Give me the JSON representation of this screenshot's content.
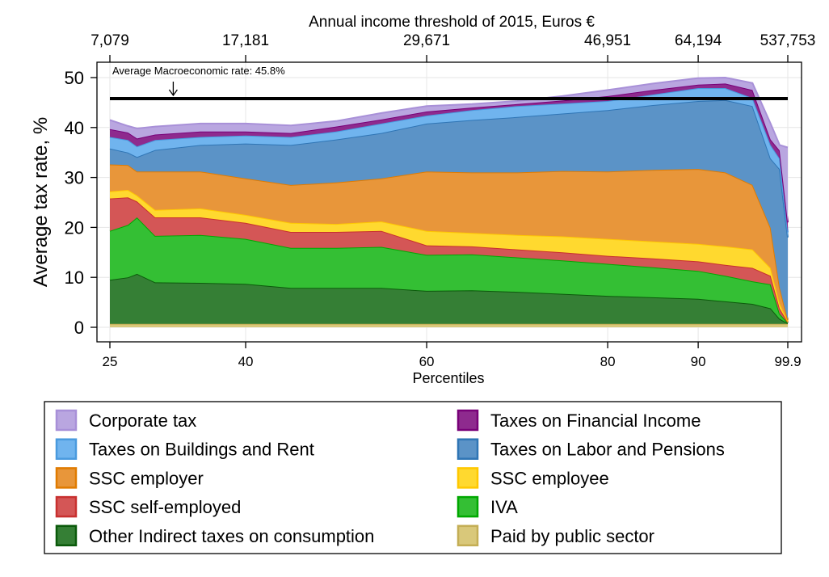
{
  "chart_data": {
    "type": "area",
    "stacked": true,
    "xlabel": "Percentiles",
    "ylabel": "Average tax rate, %",
    "x2label": "Annual income threshold of 2015, Euros €",
    "ylim": [
      0,
      50
    ],
    "xlim": [
      25,
      99.9
    ],
    "grid": true,
    "legend_position": "bottom",
    "x_ticks": [
      25,
      40,
      60,
      80,
      90,
      99.9
    ],
    "x_tick_labels": [
      "25",
      "40",
      "60",
      "80",
      "90",
      "99.9"
    ],
    "y_ticks": [
      0,
      10,
      20,
      30,
      40,
      50
    ],
    "y_tick_labels": [
      "0",
      "10",
      "20",
      "30",
      "40",
      "50"
    ],
    "x2_tick_labels": [
      "7,079",
      "17,181",
      "29,671",
      "46,951",
      "64,194",
      "537,753"
    ],
    "reference_line": {
      "value": 45.8,
      "label": "Average Macroeconomic rate: 45.8%",
      "arrow_x": 32
    },
    "x": [
      25,
      27,
      28,
      30,
      35,
      40,
      45,
      50,
      55,
      60,
      65,
      70,
      75,
      80,
      85,
      90,
      93,
      96,
      98,
      99,
      99.9
    ],
    "series": [
      {
        "name": "Paid by public sector",
        "color": "#d9c87a",
        "stroke": "#c4ae55",
        "values": [
          0.7,
          0.7,
          0.7,
          0.7,
          0.7,
          0.7,
          0.7,
          0.7,
          0.7,
          0.7,
          0.7,
          0.7,
          0.7,
          0.7,
          0.7,
          0.7,
          0.7,
          0.7,
          0.7,
          0.7,
          0.7
        ]
      },
      {
        "name": "Other Indirect taxes on consumption",
        "color": "#357f35",
        "stroke": "#0b5a0b",
        "values": [
          8.8,
          9.3,
          10,
          8.3,
          8.2,
          8,
          7.2,
          7.2,
          7.2,
          6.6,
          6.7,
          6.4,
          6,
          5.6,
          5.3,
          5,
          4.5,
          4,
          3.1,
          1,
          0.1
        ]
      },
      {
        "name": "IVA",
        "color": "#34bf34",
        "stroke": "#00a800",
        "values": [
          9.8,
          10.5,
          11.3,
          9.3,
          9.6,
          9,
          8,
          8,
          8.2,
          7.2,
          7.2,
          6.9,
          6.7,
          6.4,
          6,
          5.6,
          5.1,
          4.5,
          4.8,
          1,
          0.1
        ]
      },
      {
        "name": "SSC self-employed",
        "color": "#d45656",
        "stroke": "#c8302f",
        "values": [
          6.5,
          5.5,
          3.2,
          3.7,
          3.5,
          3.2,
          3.2,
          3.2,
          3.2,
          1.9,
          1.6,
          1.6,
          1.6,
          1.6,
          1.8,
          1.9,
          2.2,
          2.7,
          1.7,
          1.1,
          0.1
        ]
      },
      {
        "name": "SSC employee",
        "color": "#ffd92f",
        "stroke": "#ffc800",
        "values": [
          1.4,
          1.5,
          1.2,
          1.5,
          1.8,
          1.6,
          1.8,
          1.6,
          1.9,
          2.9,
          2.7,
          2.9,
          3.2,
          3.4,
          3.4,
          3.5,
          3.7,
          3.7,
          1.6,
          1,
          0.2
        ]
      },
      {
        "name": "SSC employer",
        "color": "#e8963a",
        "stroke": "#e07b00",
        "values": [
          5.4,
          5,
          4.8,
          7.7,
          7.4,
          7.3,
          7.6,
          8.3,
          8.6,
          11.9,
          12.1,
          12.5,
          13.1,
          13.5,
          14.3,
          15,
          14.8,
          12.9,
          8,
          3.2,
          0.3
        ]
      },
      {
        "name": "Taxes on Labor and Pensions",
        "color": "#5b93c7",
        "stroke": "#2f75b5",
        "values": [
          3.2,
          2.5,
          2.9,
          4.3,
          5.3,
          7,
          8,
          8.6,
          9.1,
          9.6,
          10.5,
          11.1,
          11.5,
          12.3,
          13,
          13.6,
          14.5,
          15.8,
          13.9,
          23.7,
          16.5
        ]
      },
      {
        "name": "Taxes on Buildings and Rent",
        "color": "#70b4ee",
        "stroke": "#4a9ade",
        "values": [
          2.3,
          2.5,
          2.1,
          2,
          1.6,
          1.6,
          1.6,
          1.6,
          1.9,
          1.6,
          2,
          2.2,
          2,
          1.8,
          2.1,
          2.6,
          2.4,
          1.6,
          2.7,
          2.1,
          1
        ]
      },
      {
        "name": "Taxes on Financial Income",
        "color": "#8e2a8e",
        "stroke": "#780078",
        "values": [
          1.6,
          1.5,
          1.6,
          1.1,
          1.1,
          0.8,
          0.8,
          1,
          0.8,
          0.8,
          0.5,
          0.4,
          0.6,
          1,
          0.9,
          0.7,
          0.9,
          1.6,
          1.1,
          1.6,
          2
        ]
      },
      {
        "name": "Corporate tax",
        "color": "#b9a6e0",
        "stroke": "#a890d8",
        "values": [
          1.8,
          1.3,
          2,
          1.6,
          1.6,
          1.6,
          1.5,
          1.1,
          1.3,
          1.1,
          0.7,
          0.6,
          0.9,
          1.2,
          1.3,
          1.3,
          1.2,
          1.4,
          3.2,
          1.1,
          15
        ]
      }
    ],
    "legend_order": [
      "Corporate tax",
      "Taxes on Financial Income",
      "Taxes on Buildings and Rent",
      "Taxes on Labor and Pensions",
      "SSC employer",
      "SSC employee",
      "SSC self-employed",
      "IVA",
      "Other Indirect taxes on consumption",
      "Paid by public sector"
    ]
  }
}
